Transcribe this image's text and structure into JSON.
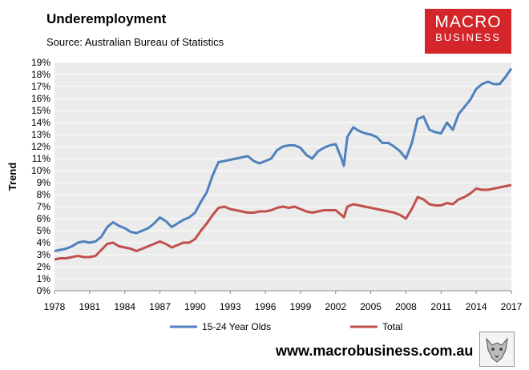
{
  "header": {
    "title": "Underemployment",
    "subtitle": "Source: Australian Bureau of Statistics"
  },
  "logo": {
    "line1": "MACRO",
    "line2": "BUSINESS"
  },
  "footer": {
    "url": "www.macrobusiness.com.au"
  },
  "colors": {
    "youth": "#4f81bd",
    "total": "#c0504d",
    "plot_bg": "#ebebeb",
    "logo_bg": "#d3252a"
  },
  "chart_data": {
    "type": "line",
    "title": "Underemployment",
    "xlabel": "",
    "ylabel": "Trend",
    "xlim": [
      1978,
      2017
    ],
    "ylim": [
      0,
      19
    ],
    "x_ticks": [
      1978,
      1981,
      1984,
      1987,
      1990,
      1993,
      1996,
      1999,
      2002,
      2005,
      2008,
      2011,
      2014,
      2017
    ],
    "y_ticks": [
      "0%",
      "1%",
      "2%",
      "3%",
      "4%",
      "5%",
      "6%",
      "7%",
      "8%",
      "9%",
      "10%",
      "11%",
      "12%",
      "13%",
      "14%",
      "15%",
      "16%",
      "17%",
      "18%",
      "19%"
    ],
    "legend": [
      "15-24 Year Olds",
      "Total"
    ],
    "legend_position": "bottom",
    "series": [
      {
        "name": "15-24 Year Olds",
        "x": [
          1978,
          1978.5,
          1979,
          1979.5,
          1980,
          1980.5,
          1981,
          1981.5,
          1982,
          1982.5,
          1983,
          1983.5,
          1984,
          1984.5,
          1985,
          1985.5,
          1986,
          1986.5,
          1987,
          1987.5,
          1988,
          1988.5,
          1989,
          1989.5,
          1990,
          1990.5,
          1991,
          1991.5,
          1992,
          1992.5,
          1993,
          1993.5,
          1994,
          1994.5,
          1995,
          1995.5,
          1996,
          1996.5,
          1997,
          1997.5,
          1998,
          1998.5,
          1999,
          1999.5,
          2000,
          2000.5,
          2001,
          2001.5,
          2002,
          2002.5,
          2002.7,
          2003,
          2003.5,
          2004,
          2004.5,
          2005,
          2005.5,
          2006,
          2006.5,
          2007,
          2007.5,
          2008,
          2008.5,
          2009,
          2009.5,
          2010,
          2010.5,
          2011,
          2011.5,
          2012,
          2012.5,
          2013,
          2013.5,
          2014,
          2014.5,
          2015,
          2015.5,
          2016,
          2016.5,
          2017
        ],
        "values": [
          3.3,
          3.4,
          3.5,
          3.7,
          4.0,
          4.1,
          4.0,
          4.1,
          4.5,
          5.3,
          5.7,
          5.4,
          5.2,
          4.9,
          4.8,
          5.0,
          5.2,
          5.6,
          6.1,
          5.8,
          5.3,
          5.6,
          5.9,
          6.1,
          6.5,
          7.4,
          8.2,
          9.6,
          10.7,
          10.8,
          10.9,
          11.0,
          11.1,
          11.2,
          10.8,
          10.6,
          10.8,
          11.0,
          11.7,
          12.0,
          12.1,
          12.1,
          11.9,
          11.3,
          11.0,
          11.6,
          11.9,
          12.1,
          12.2,
          11.0,
          10.4,
          12.8,
          13.6,
          13.3,
          13.1,
          13.0,
          12.8,
          12.3,
          12.3,
          12.0,
          11.6,
          11.0,
          12.3,
          14.3,
          14.5,
          13.4,
          13.2,
          13.1,
          14.0,
          13.4,
          14.7,
          15.3,
          15.9,
          16.8,
          17.2,
          17.4,
          17.2,
          17.2,
          17.8,
          18.5
        ]
      },
      {
        "name": "Total",
        "x": [
          1978,
          1978.5,
          1979,
          1979.5,
          1980,
          1980.5,
          1981,
          1981.5,
          1982,
          1982.5,
          1983,
          1983.5,
          1984,
          1984.5,
          1985,
          1985.5,
          1986,
          1986.5,
          1987,
          1987.5,
          1988,
          1988.5,
          1989,
          1989.5,
          1990,
          1990.5,
          1991,
          1991.5,
          1992,
          1992.5,
          1993,
          1993.5,
          1994,
          1994.5,
          1995,
          1995.5,
          1996,
          1996.5,
          1997,
          1997.5,
          1998,
          1998.5,
          1999,
          1999.5,
          2000,
          2000.5,
          2001,
          2001.5,
          2002,
          2002.5,
          2002.7,
          2003,
          2003.5,
          2004,
          2004.5,
          2005,
          2005.5,
          2006,
          2006.5,
          2007,
          2007.5,
          2008,
          2008.5,
          2009,
          2009.5,
          2010,
          2010.5,
          2011,
          2011.5,
          2012,
          2012.5,
          2013,
          2013.5,
          2014,
          2014.5,
          2015,
          2015.5,
          2016,
          2016.5,
          2017
        ],
        "values": [
          2.6,
          2.7,
          2.7,
          2.8,
          2.9,
          2.8,
          2.8,
          2.9,
          3.4,
          3.9,
          4.0,
          3.7,
          3.6,
          3.5,
          3.3,
          3.5,
          3.7,
          3.9,
          4.1,
          3.9,
          3.6,
          3.8,
          4.0,
          4.0,
          4.3,
          5.0,
          5.6,
          6.3,
          6.9,
          7.0,
          6.8,
          6.7,
          6.6,
          6.5,
          6.5,
          6.6,
          6.6,
          6.7,
          6.9,
          7.0,
          6.9,
          7.0,
          6.8,
          6.6,
          6.5,
          6.6,
          6.7,
          6.7,
          6.7,
          6.3,
          6.1,
          7.0,
          7.2,
          7.1,
          7.0,
          6.9,
          6.8,
          6.7,
          6.6,
          6.5,
          6.3,
          6.0,
          6.8,
          7.8,
          7.6,
          7.2,
          7.1,
          7.1,
          7.3,
          7.2,
          7.6,
          7.8,
          8.1,
          8.5,
          8.4,
          8.4,
          8.5,
          8.6,
          8.7,
          8.8
        ]
      }
    ]
  }
}
